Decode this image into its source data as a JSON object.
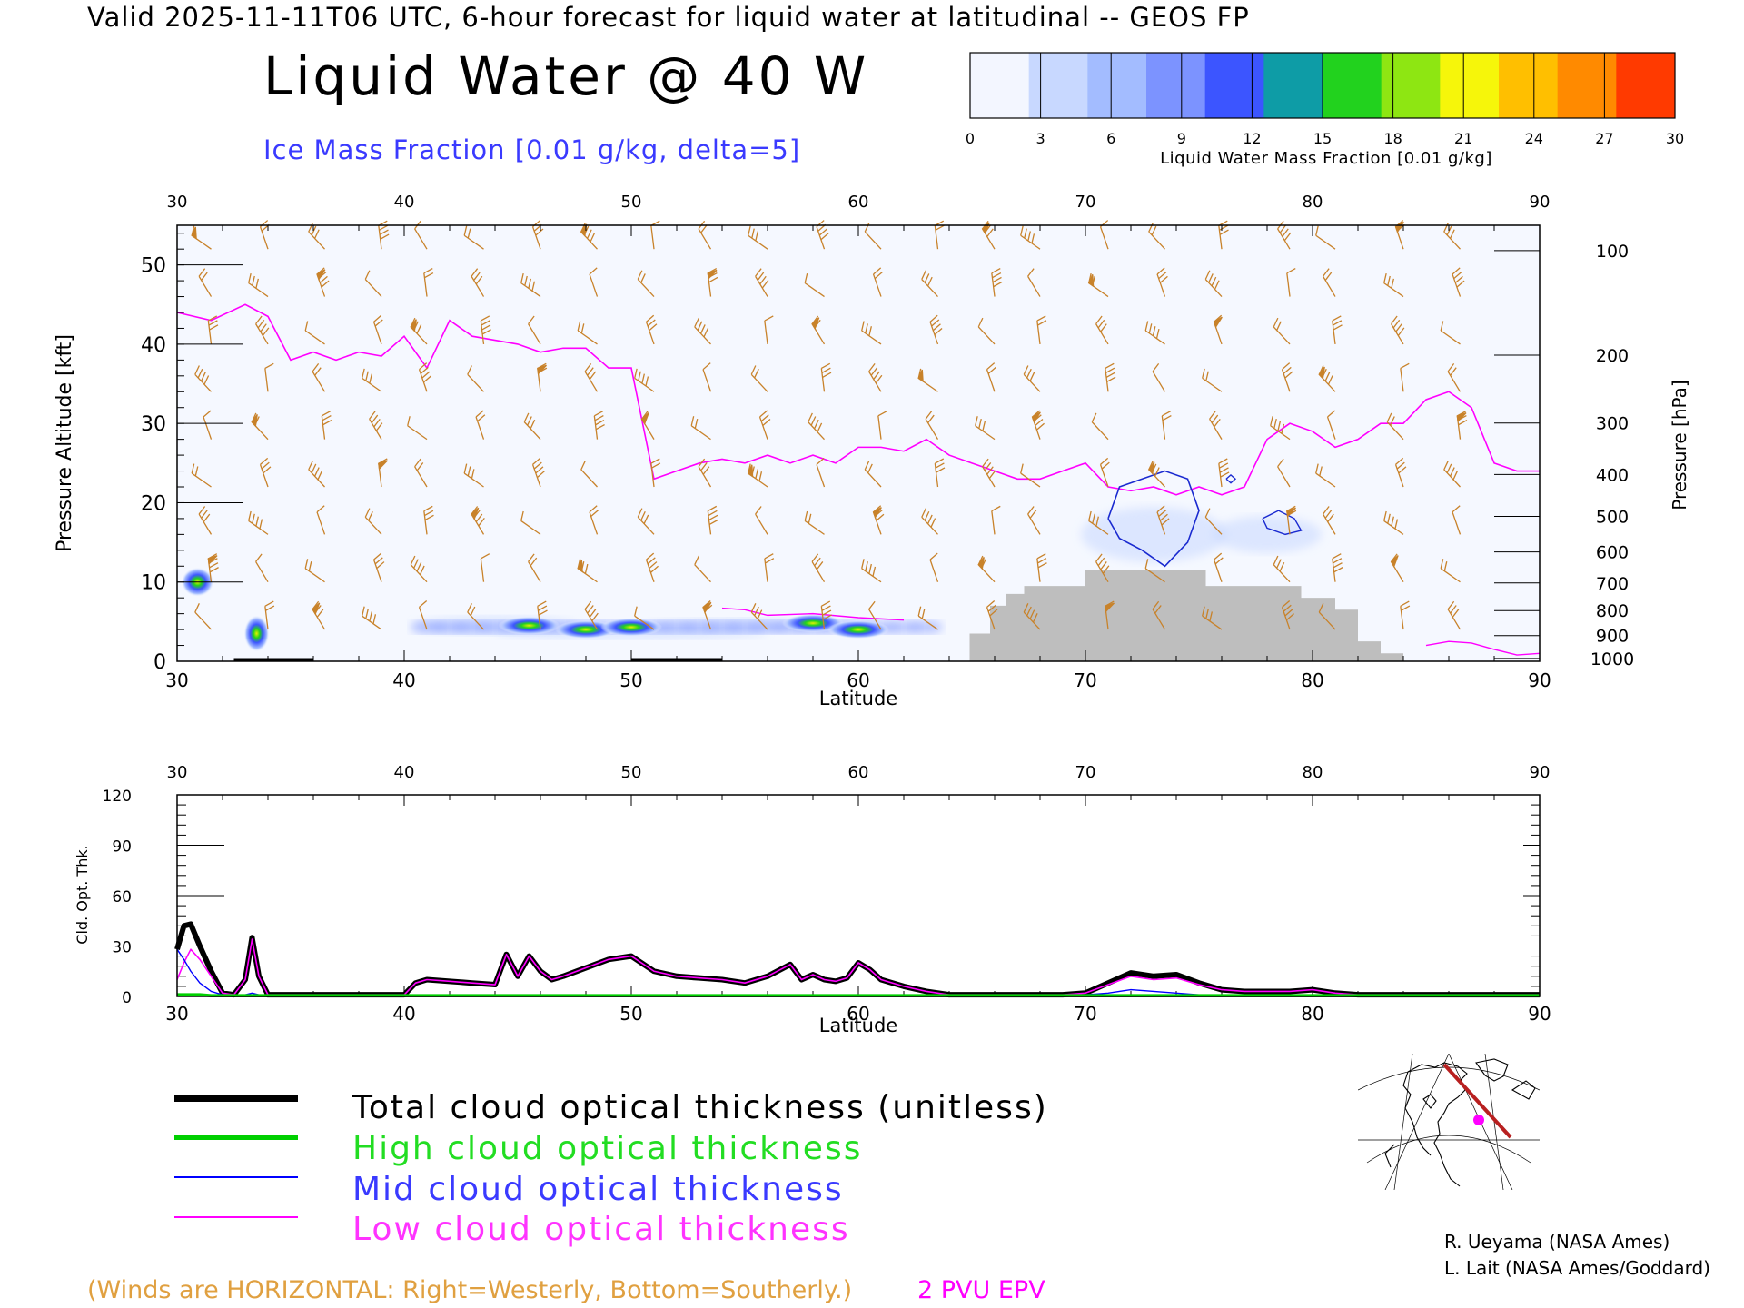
{
  "header": {
    "valid_line": "Valid 2025-11-11T06 UTC, 6-hour forecast for liquid water at latitudinal -- GEOS FP",
    "title": "Liquid Water @ 40 W",
    "subtitle": "Ice Mass Fraction [0.01 g/kg, delta=5]"
  },
  "colorbar": {
    "title": "Liquid Water Mass Fraction [0.01 g/kg]",
    "ticks": [
      "0",
      "3",
      "6",
      "9",
      "12",
      "15",
      "18",
      "21",
      "24",
      "27",
      "30"
    ],
    "colors": [
      "#f3f6ff",
      "#c8d8ff",
      "#a3bcff",
      "#7c93ff",
      "#3c55ff",
      "#0e9ca6",
      "#22d21e",
      "#8ee612",
      "#f6f60a",
      "#ffbf00",
      "#ff8a00",
      "#ff3a00"
    ]
  },
  "chart_data": [
    {
      "type": "heatmap",
      "xlabel": "Latitude",
      "ylabel": "Pressure Altitude [kft]",
      "ylabel_right": "Pressure [hPa]",
      "x_ticks": [
        "30",
        "40",
        "50",
        "60",
        "70",
        "80",
        "90"
      ],
      "top_ticks": [
        "30",
        "40",
        "50",
        "60",
        "70",
        "80",
        "90"
      ],
      "y_ticks": [
        "0",
        "10",
        "20",
        "30",
        "40",
        "50"
      ],
      "pressure_ticks": [
        "100",
        "200",
        "300",
        "400",
        "500",
        "600",
        "700",
        "800",
        "900",
        "1000"
      ],
      "xlim": [
        30,
        90
      ],
      "ylim": [
        0,
        55
      ],
      "liquid_water_blobs": [
        {
          "lat": 30.9,
          "kft": 10.0,
          "peak": 15
        },
        {
          "lat": 33.5,
          "kft": 3.5,
          "peak": 18
        },
        {
          "lat": 45.5,
          "kft": 4.5,
          "peak": 18
        },
        {
          "lat": 48.0,
          "kft": 4.0,
          "peak": 18
        },
        {
          "lat": 50.0,
          "kft": 4.3,
          "peak": 15
        },
        {
          "lat": 58.0,
          "kft": 4.8,
          "peak": 15
        },
        {
          "lat": 60.0,
          "kft": 4.0,
          "peak": 12
        }
      ],
      "epv_2pvu": [
        [
          30,
          44
        ],
        [
          31.5,
          43
        ],
        [
          33,
          45
        ],
        [
          34,
          43.5
        ],
        [
          35,
          38
        ],
        [
          36,
          39
        ],
        [
          37,
          38
        ],
        [
          38,
          39
        ],
        [
          39,
          38.5
        ],
        [
          40,
          41
        ],
        [
          41,
          37
        ],
        [
          42,
          43
        ],
        [
          43,
          41
        ],
        [
          44,
          40.5
        ],
        [
          45,
          40
        ],
        [
          46,
          39
        ],
        [
          47,
          39.5
        ],
        [
          48,
          39.5
        ],
        [
          49,
          37
        ],
        [
          50,
          37
        ],
        [
          51,
          23
        ],
        [
          52,
          24
        ],
        [
          53,
          25
        ],
        [
          54,
          25.5
        ],
        [
          55,
          25
        ],
        [
          56,
          26
        ],
        [
          57,
          25
        ],
        [
          58,
          26
        ],
        [
          59,
          25
        ],
        [
          60,
          27
        ],
        [
          61,
          27
        ],
        [
          62,
          26.5
        ],
        [
          63,
          28
        ],
        [
          64,
          26
        ],
        [
          65,
          25
        ],
        [
          66,
          24
        ],
        [
          67,
          23
        ],
        [
          68,
          23
        ],
        [
          69,
          24
        ],
        [
          70,
          25
        ],
        [
          71,
          22
        ],
        [
          72,
          21.5
        ],
        [
          73,
          22
        ],
        [
          74,
          21
        ],
        [
          75,
          22
        ],
        [
          76,
          21
        ],
        [
          77,
          22
        ],
        [
          78,
          28
        ],
        [
          79,
          30
        ],
        [
          80,
          29
        ],
        [
          81,
          27
        ],
        [
          82,
          28
        ],
        [
          83,
          30
        ],
        [
          84,
          30
        ],
        [
          85,
          33
        ],
        [
          86,
          34
        ],
        [
          87,
          32
        ],
        [
          88,
          25
        ],
        [
          89,
          24
        ],
        [
          90,
          24
        ]
      ],
      "ice_contour": [
        [
          71,
          18
        ],
        [
          71.5,
          22
        ],
        [
          72.5,
          23
        ],
        [
          73.5,
          24
        ],
        [
          74.5,
          23
        ],
        [
          75,
          19
        ],
        [
          74.5,
          15
        ],
        [
          73.5,
          12
        ],
        [
          72.5,
          14
        ],
        [
          71.5,
          15.5
        ],
        [
          71,
          18
        ]
      ],
      "terrain": [
        [
          64.9,
          0
        ],
        [
          64.9,
          3.5
        ],
        [
          65.8,
          3.5
        ],
        [
          65.8,
          7.0
        ],
        [
          66.5,
          7.0
        ],
        [
          66.5,
          8.5
        ],
        [
          67.3,
          8.5
        ],
        [
          67.3,
          9.5
        ],
        [
          70.0,
          9.5
        ],
        [
          70.0,
          11.5
        ],
        [
          75.3,
          11.5
        ],
        [
          75.3,
          9.5
        ],
        [
          79.5,
          9.5
        ],
        [
          79.5,
          8.0
        ],
        [
          81.0,
          8.0
        ],
        [
          81.0,
          6.5
        ],
        [
          82.0,
          6.5
        ],
        [
          82.0,
          2.5
        ],
        [
          83.0,
          2.5
        ],
        [
          83.0,
          1.0
        ],
        [
          84.0,
          1.0
        ],
        [
          84.0,
          0
        ]
      ],
      "wind_barb_lats": [
        31.5,
        34,
        36.5,
        39,
        41,
        43.5,
        46,
        48.5,
        51,
        53.5,
        56,
        58.5,
        61,
        63.5,
        66,
        68,
        71,
        73.5,
        76,
        79,
        81,
        84,
        86.5
      ],
      "wind_barb_kfts": [
        52,
        46,
        40,
        34,
        28,
        22,
        16,
        10,
        4
      ]
    },
    {
      "type": "line",
      "xlabel": "Latitude",
      "ylabel": "Cld. Opt. Thk.",
      "x_ticks": [
        "30",
        "40",
        "50",
        "60",
        "70",
        "80",
        "90"
      ],
      "top_ticks": [
        "30",
        "40",
        "50",
        "60",
        "70",
        "80",
        "90"
      ],
      "y_ticks": [
        "0",
        "30",
        "60",
        "90",
        "120"
      ],
      "xlim": [
        30,
        90
      ],
      "ylim": [
        0,
        120
      ],
      "x": [
        30,
        30.3,
        30.6,
        31,
        31.5,
        32,
        32.5,
        33,
        33.3,
        33.6,
        34,
        35,
        36,
        37,
        38,
        39,
        40,
        40.5,
        41,
        42,
        43,
        44,
        44.5,
        45,
        45.5,
        46,
        46.5,
        47,
        48,
        49,
        50,
        51,
        52,
        53,
        54,
        55,
        56,
        57,
        57.5,
        58,
        58.5,
        59,
        59.5,
        60,
        60.5,
        61,
        62,
        63,
        64,
        65,
        66,
        67,
        68,
        69,
        70,
        71,
        72,
        73,
        74,
        75,
        76,
        77,
        78,
        79,
        80,
        81,
        82,
        83,
        84,
        85,
        86,
        87,
        88,
        89,
        90
      ],
      "series": [
        {
          "name": "Total cloud optical thickness (unitless)",
          "color": "#000000",
          "values": [
            28,
            42,
            43,
            30,
            15,
            2,
            1,
            10,
            35,
            12,
            1,
            1,
            1,
            1,
            1,
            1,
            1,
            8,
            10,
            9,
            8,
            7,
            25,
            12,
            24,
            15,
            10,
            12,
            17,
            22,
            24,
            15,
            12,
            11,
            10,
            8,
            12,
            19,
            10,
            13,
            10,
            9,
            11,
            20,
            16,
            10,
            6,
            3,
            1,
            1,
            1,
            1,
            1,
            1,
            2,
            8,
            14,
            12,
            13,
            8,
            4,
            3,
            3,
            3,
            4,
            2,
            1,
            1,
            1,
            1,
            1,
            1,
            1,
            1,
            1
          ]
        },
        {
          "name": "High cloud optical thickness",
          "color": "#00d000",
          "values": [
            1,
            1,
            1,
            1,
            0.5,
            0.5,
            0.5,
            0.5,
            0.5,
            0.5,
            0.5,
            0.5,
            0.5,
            0.5,
            0.5,
            0.5,
            0.5,
            0.5,
            0.5,
            0.5,
            0.5,
            0.5,
            0.5,
            0.5,
            0.5,
            0.5,
            0.5,
            0.5,
            0.5,
            0.5,
            0.5,
            0.5,
            0.5,
            0.5,
            0.5,
            0.5,
            0.5,
            0.5,
            0.5,
            0.5,
            0.5,
            0.5,
            0.5,
            0.5,
            0.5,
            0.5,
            0.5,
            0.5,
            0.5,
            0.5,
            0.5,
            0.5,
            0.5,
            0.5,
            0.5,
            0.5,
            0.5,
            0.5,
            0.5,
            0.5,
            0.5,
            0.5,
            0.5,
            0.5,
            0.5,
            0.5,
            0.5,
            0.5,
            0.5,
            0.5,
            0.5,
            0.5,
            0.5,
            0.5,
            0.5
          ]
        },
        {
          "name": "Mid cloud optical thickness",
          "color": "#0000ff",
          "values": [
            28,
            22,
            15,
            8,
            3,
            1,
            1,
            1,
            2,
            1,
            1,
            1,
            1,
            1,
            1,
            1,
            1,
            1,
            1,
            1,
            1,
            1,
            1,
            1,
            1,
            1,
            1,
            1,
            1,
            1,
            1,
            1,
            1,
            1,
            1,
            1,
            1,
            1,
            1,
            1,
            1,
            1,
            1,
            1,
            1,
            1,
            1,
            1,
            1,
            1,
            1,
            1,
            1,
            1,
            1,
            2,
            4,
            3,
            2,
            1,
            1,
            1,
            1,
            1,
            1,
            1,
            1,
            1,
            1,
            1,
            1,
            1,
            1,
            1,
            1
          ]
        },
        {
          "name": "Low cloud optical thickness",
          "color": "#ff00ff",
          "values": [
            10,
            20,
            28,
            22,
            12,
            2,
            1,
            10,
            34,
            12,
            1,
            1,
            1,
            1,
            1,
            1,
            1,
            8,
            10,
            9,
            8,
            7,
            25,
            12,
            24,
            15,
            10,
            12,
            17,
            22,
            24,
            15,
            12,
            11,
            10,
            8,
            12,
            19,
            10,
            13,
            10,
            9,
            11,
            20,
            16,
            10,
            6,
            3,
            1,
            1,
            1,
            1,
            1,
            1,
            2,
            7,
            12,
            10,
            11,
            7,
            4,
            3,
            3,
            3,
            4,
            2,
            1,
            1,
            1,
            1,
            1,
            1,
            1,
            1,
            1
          ]
        }
      ]
    }
  ],
  "footer": {
    "winds_note": "(Winds are HORIZONTAL: Right=Westerly, Bottom=Southerly.)",
    "epv_label": "2 PVU EPV",
    "credit_1": "R. Ueyama (NASA Ames)",
    "credit_2": "L. Lait (NASA Ames/Goddard)"
  },
  "colors": {
    "winds": "#c8822a",
    "epv": "#ff00ff",
    "ice_contour": "#1a2ad0",
    "terrain": "#bebebe"
  }
}
